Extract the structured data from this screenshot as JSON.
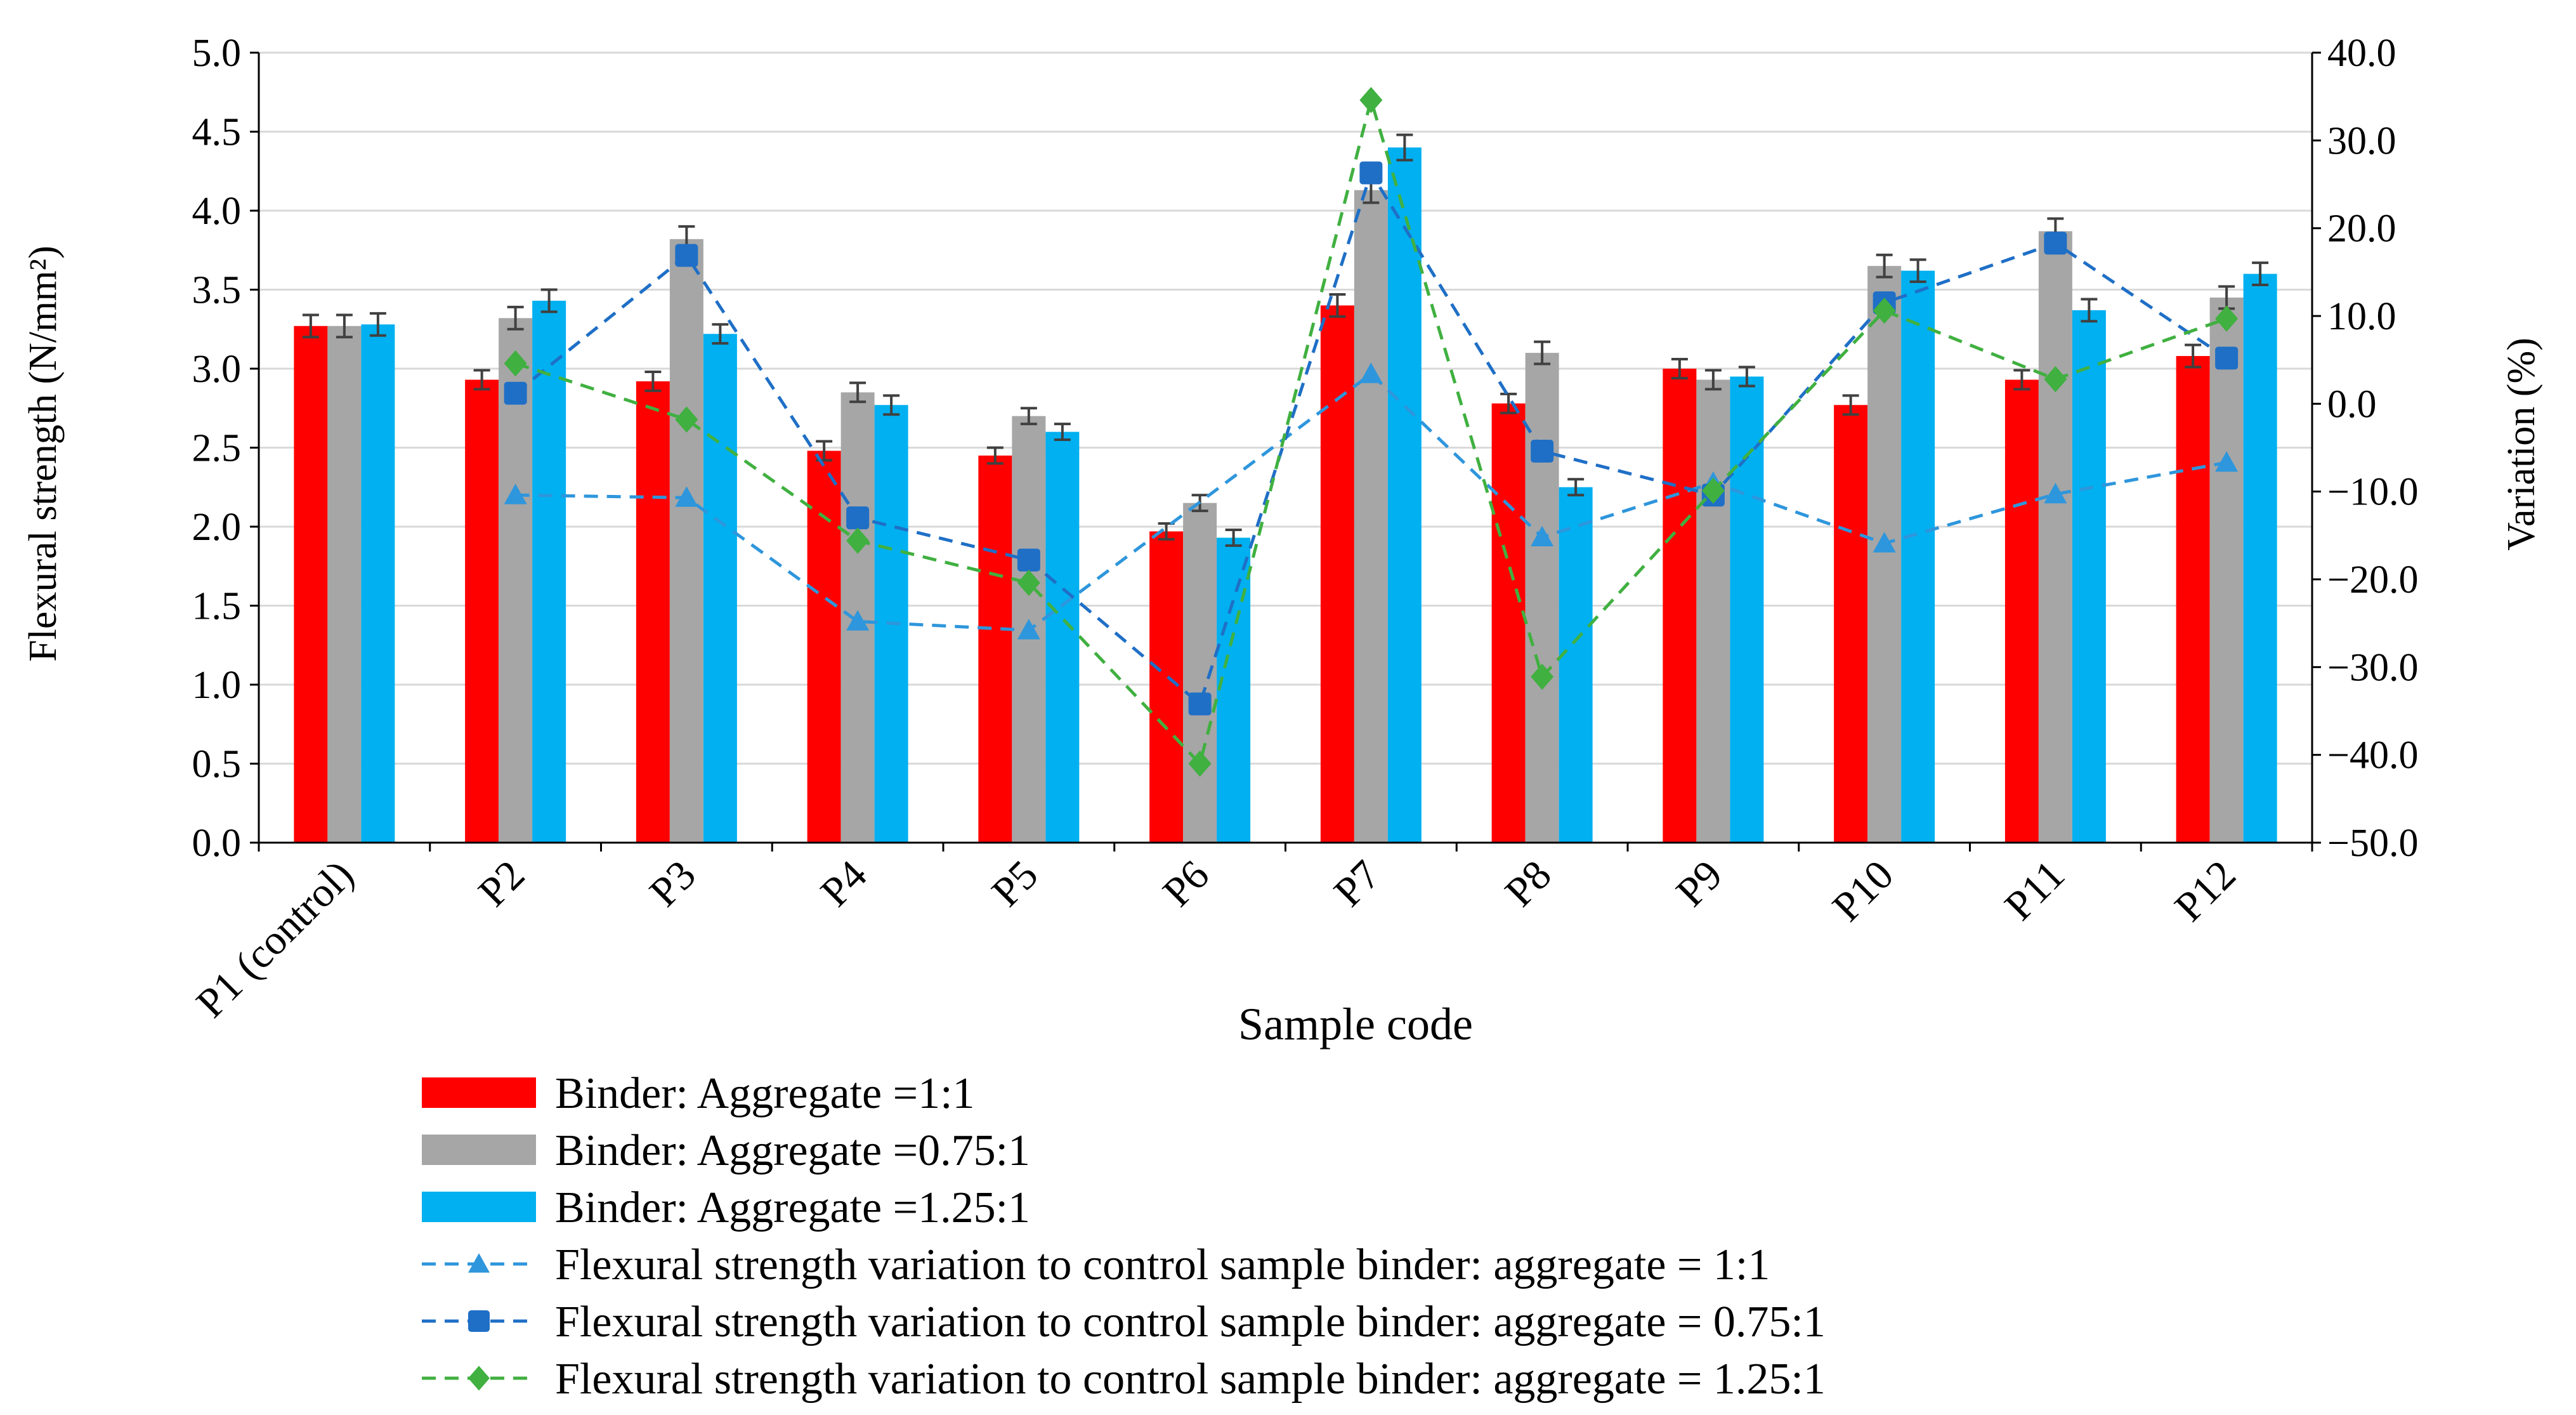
{
  "chart_data": {
    "type": "bar",
    "title": "",
    "xlabel": "Sample code",
    "ylabel": "Flexural strength (N/mm²)",
    "ylabel_right": "Variation (%)",
    "ylim": [
      0,
      5
    ],
    "ylim_right": [
      -50,
      40
    ],
    "y_ticks": [
      "0.0",
      "0.5",
      "1.0",
      "1.5",
      "2.0",
      "2.5",
      "3.0",
      "3.5",
      "4.0",
      "4.5",
      "5.0"
    ],
    "y_right_ticks": [
      "-50.0",
      "-40.0",
      "-30.0",
      "-20.0",
      "-10.0",
      "0.0",
      "10.0",
      "20.0",
      "30.0",
      "40.0"
    ],
    "grid": true,
    "legend_position": "bottom",
    "categories": [
      "P1 (control)",
      "P2",
      "P3",
      "P4",
      "P5",
      "P6",
      "P7",
      "P8",
      "P9",
      "P10",
      "P11",
      "P12"
    ],
    "series": [
      {
        "name": "Binder:  Aggregate =1:1",
        "kind": "bar",
        "axis": "left",
        "color": "#FF0000",
        "values": [
          3.27,
          2.93,
          2.92,
          2.48,
          2.45,
          1.97,
          3.4,
          2.78,
          3.0,
          2.77,
          2.93,
          3.08
        ],
        "error": [
          0.07,
          0.06,
          0.06,
          0.06,
          0.05,
          0.05,
          0.07,
          0.06,
          0.06,
          0.06,
          0.06,
          0.07
        ]
      },
      {
        "name": "Binder: Aggregate =0.75:1",
        "kind": "bar",
        "axis": "left",
        "color": "#A6A6A6",
        "values": [
          3.27,
          3.32,
          3.82,
          2.85,
          2.7,
          2.15,
          4.13,
          3.1,
          2.93,
          3.65,
          3.87,
          3.45
        ],
        "error": [
          0.07,
          0.07,
          0.08,
          0.06,
          0.05,
          0.05,
          0.08,
          0.07,
          0.06,
          0.07,
          0.08,
          0.07
        ]
      },
      {
        "name": "Binder: Aggregate =1.25:1",
        "kind": "bar",
        "axis": "left",
        "color": "#00B0F0",
        "values": [
          3.28,
          3.43,
          3.22,
          2.77,
          2.6,
          1.93,
          4.4,
          2.25,
          2.95,
          3.62,
          3.37,
          3.6
        ],
        "error": [
          0.07,
          0.07,
          0.06,
          0.06,
          0.05,
          0.05,
          0.08,
          0.05,
          0.06,
          0.07,
          0.07,
          0.07
        ]
      },
      {
        "name": "Flexural strength variation to control sample binder: aggregate = 1:1",
        "kind": "line",
        "axis": "right",
        "color": "#2E96DC",
        "marker": "triangle",
        "values": [
          null,
          -10.4,
          -10.7,
          -24.8,
          -25.8,
          null,
          3.4,
          -15.2,
          -9.0,
          -15.9,
          -10.3,
          -6.7
        ]
      },
      {
        "name": "Flexural strength variation to control sample binder: aggregate = 0.75:1",
        "kind": "line",
        "axis": "right",
        "color": "#1F6FC6",
        "marker": "square",
        "values": [
          null,
          1.2,
          16.9,
          -13.0,
          -17.8,
          -34.2,
          26.3,
          -5.4,
          -10.4,
          11.5,
          18.3,
          5.2
        ]
      },
      {
        "name": "Flexural strength variation to control sample binder: aggregate = 1.25:1",
        "kind": "line",
        "axis": "right",
        "color": "#40B040",
        "marker": "diamond",
        "values": [
          null,
          4.6,
          -1.8,
          -15.6,
          -20.4,
          -41.0,
          34.6,
          -31.1,
          -9.9,
          10.6,
          2.8,
          9.7
        ]
      }
    ]
  }
}
